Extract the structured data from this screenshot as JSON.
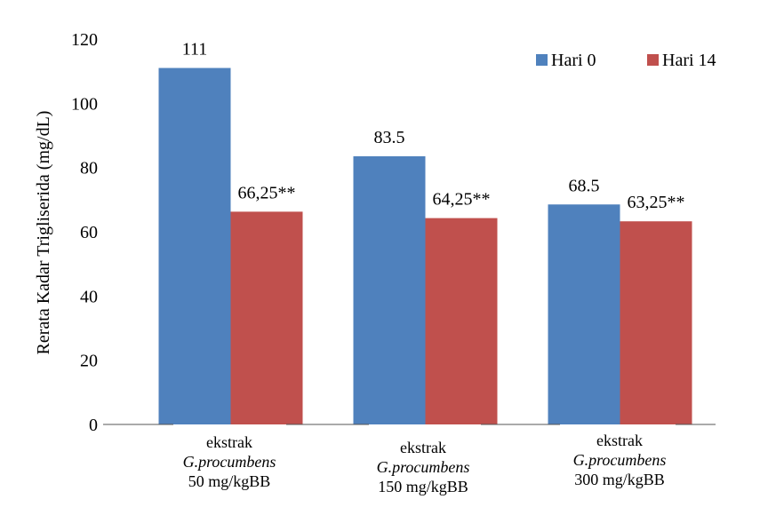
{
  "chart_data": {
    "type": "bar",
    "title": "",
    "xlabel": "",
    "ylabel": "Rerata Kadar Trigliserida (mg/dL)",
    "ylim": [
      0,
      120
    ],
    "yticks": [
      0,
      20,
      40,
      60,
      80,
      100,
      120
    ],
    "grid": false,
    "legend_position": "top-right",
    "categories": [
      {
        "line1": "ekstrak",
        "line2": "G.procumbens",
        "line3": "50 mg/kgBB"
      },
      {
        "line1": "ekstrak",
        "line2": "G.procumbens",
        "line3": "150 mg/kgBB"
      },
      {
        "line1": "ekstrak",
        "line2": "G.procumbens",
        "line3": "300 mg/kgBB"
      }
    ],
    "series": [
      {
        "name": "Hari 0",
        "color": "#4F81BD",
        "values": [
          111,
          83.5,
          68.5
        ],
        "labels": [
          "111",
          "83.5",
          "68.5"
        ]
      },
      {
        "name": "Hari 14",
        "color": "#C0504D",
        "values": [
          66.25,
          64.25,
          63.25
        ],
        "labels": [
          "66,25**",
          "64,25**",
          "63,25**"
        ]
      }
    ]
  }
}
